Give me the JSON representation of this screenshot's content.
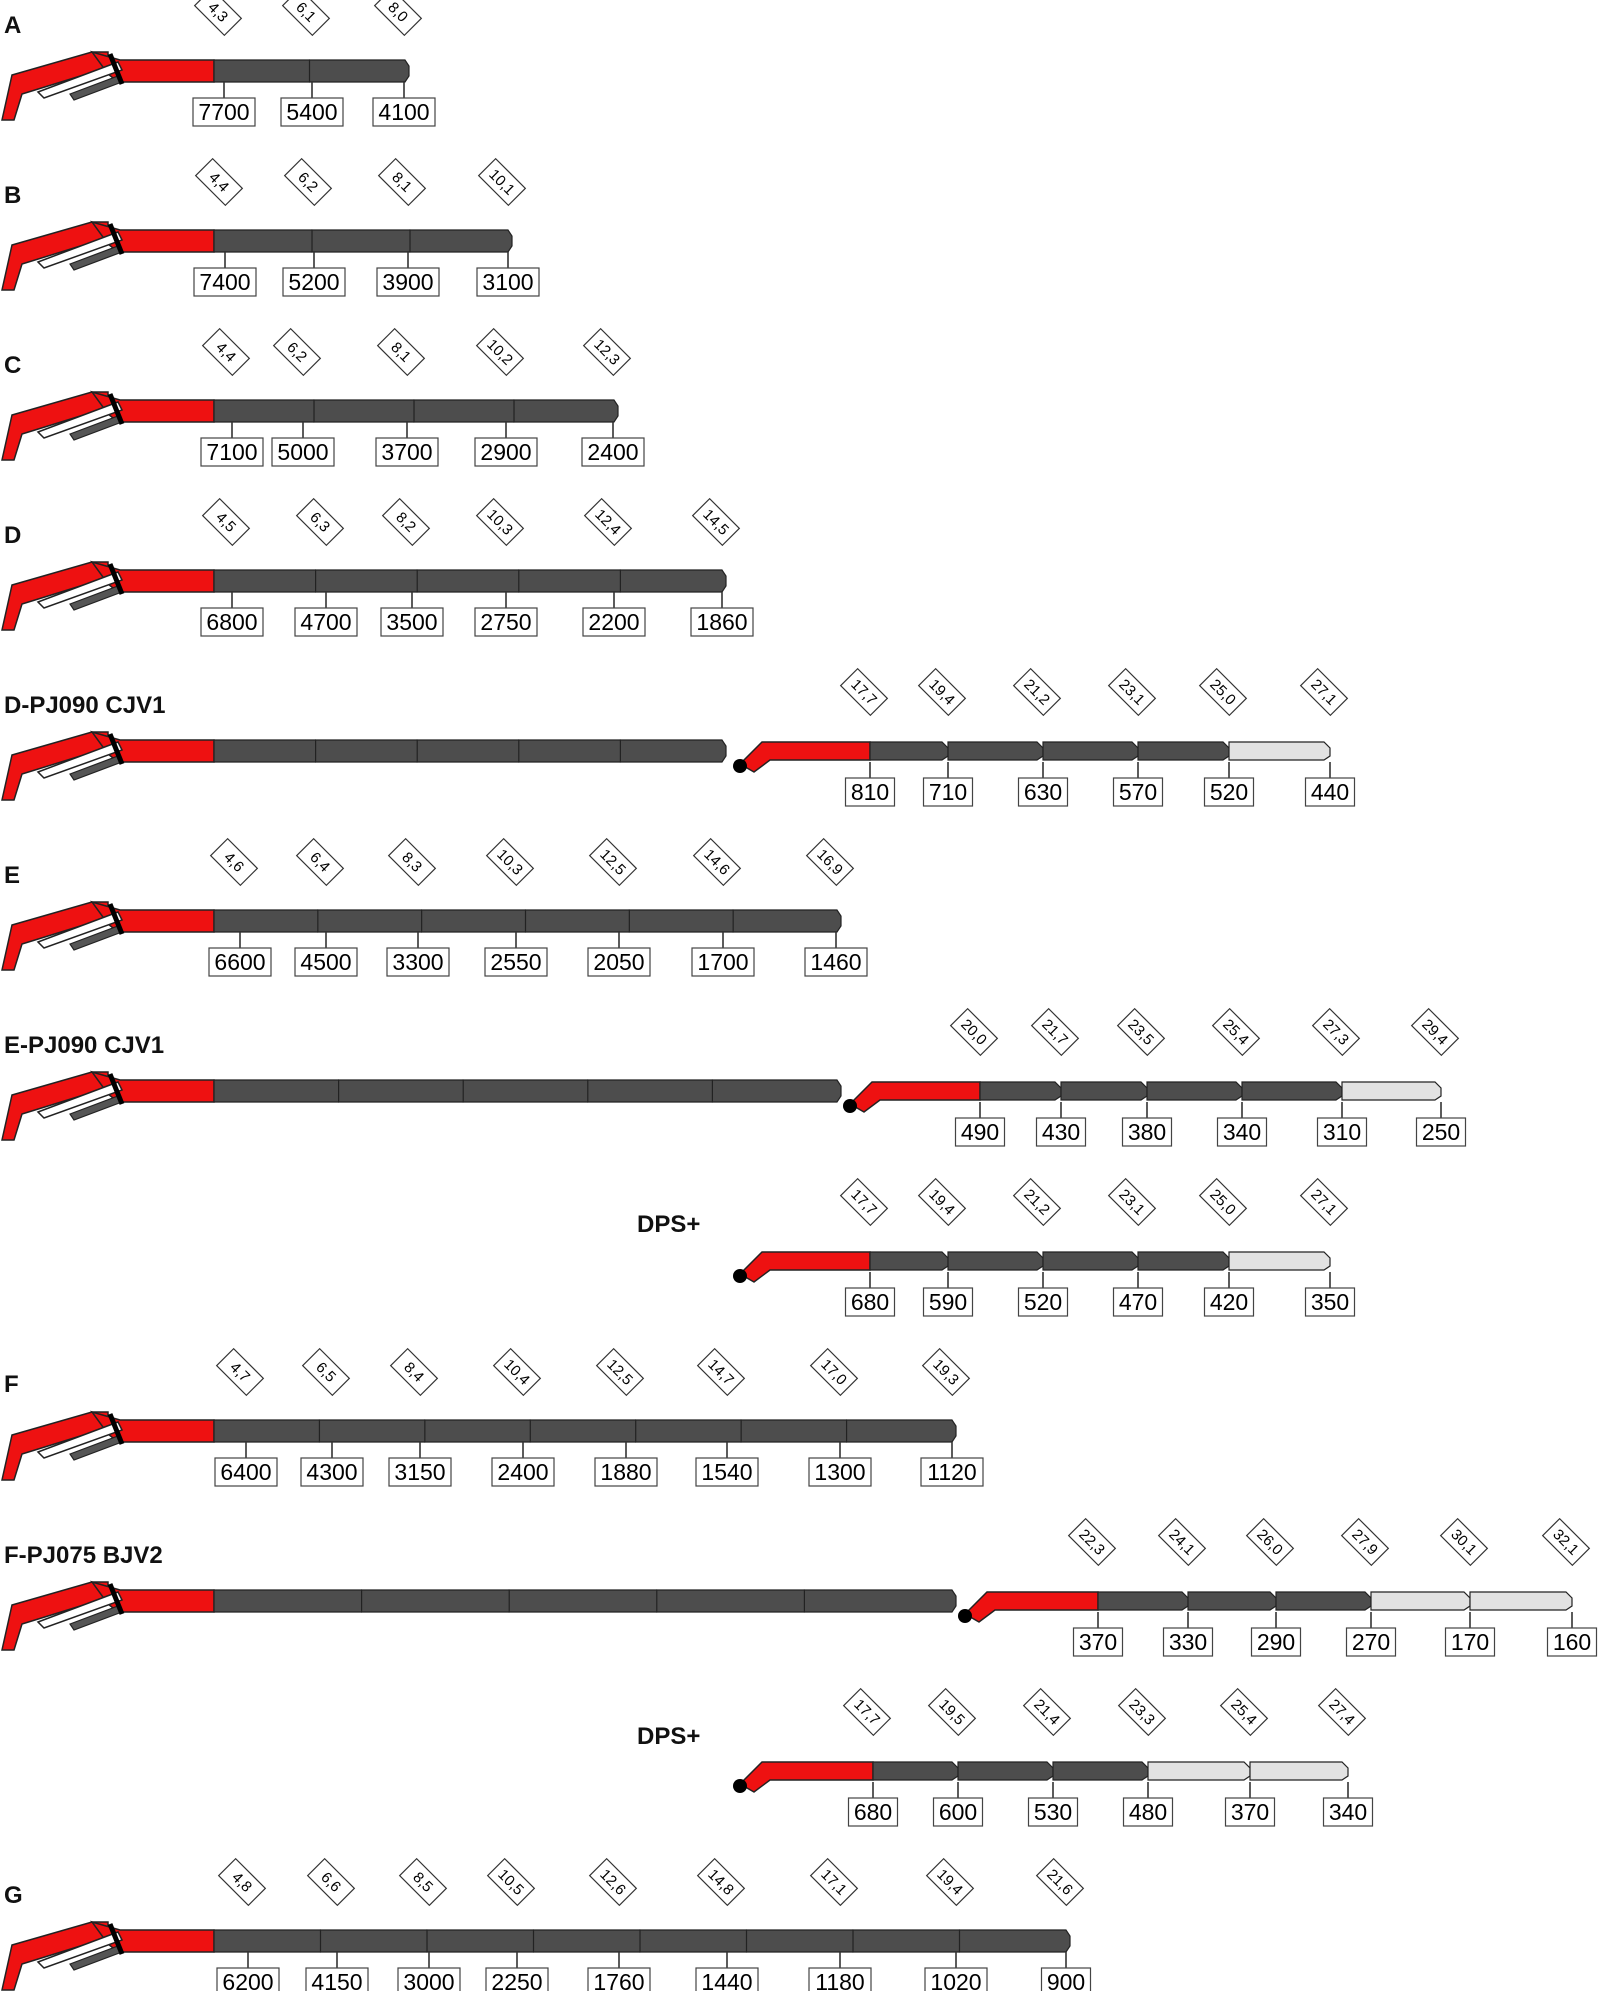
{
  "colors": {
    "red": "#ee1111",
    "dark_grey": "#4d4d4d",
    "light_grey": "#e2e2e2",
    "outline": "#222222"
  },
  "rows": [
    {
      "label": "A",
      "main": {
        "reach": [
          "4,3",
          "6,1",
          "8,0"
        ],
        "cap": [
          "7700",
          "5400",
          "4100"
        ]
      }
    },
    {
      "label": "B",
      "main": {
        "reach": [
          "4,4",
          "6,2",
          "8,1",
          "10,1"
        ],
        "cap": [
          "7400",
          "5200",
          "3900",
          "3100"
        ]
      }
    },
    {
      "label": "C",
      "main": {
        "reach": [
          "4,4",
          "6,2",
          "8,1",
          "10,2",
          "12,3"
        ],
        "cap": [
          "7100",
          "5000",
          "3700",
          "2900",
          "2400"
        ]
      }
    },
    {
      "label": "D",
      "main": {
        "reach": [
          "4,5",
          "6,3",
          "8,2",
          "10,3",
          "12,4",
          "14,5"
        ],
        "cap": [
          "6800",
          "4700",
          "3500",
          "2750",
          "2200",
          "1860"
        ]
      }
    },
    {
      "label": "D-PJ090 CJV1",
      "jib": {
        "reach": [
          "17,7",
          "19,4",
          "21,2",
          "23,1",
          "25,0",
          "27,1"
        ],
        "cap": [
          "810",
          "710",
          "630",
          "570",
          "520",
          "440"
        ],
        "kinds": [
          "dark",
          "dark",
          "dark",
          "dark",
          "light"
        ]
      }
    },
    {
      "label": "E",
      "main": {
        "reach": [
          "4,6",
          "6,4",
          "8,3",
          "10,3",
          "12,5",
          "14,6",
          "16,9"
        ],
        "cap": [
          "6600",
          "4500",
          "3300",
          "2550",
          "2050",
          "1700",
          "1460"
        ]
      }
    },
    {
      "label": "E-PJ090 CJV1",
      "jib": {
        "reach": [
          "20,0",
          "21,7",
          "23,5",
          "25,4",
          "27,3",
          "29,4"
        ],
        "cap": [
          "490",
          "430",
          "380",
          "340",
          "310",
          "250"
        ],
        "kinds": [
          "dark",
          "dark",
          "dark",
          "dark",
          "light"
        ]
      }
    },
    {
      "label": "DPS+",
      "jib": {
        "reach": [
          "17,7",
          "19,4",
          "21,2",
          "23,1",
          "25,0",
          "27,1"
        ],
        "cap": [
          "680",
          "590",
          "520",
          "470",
          "420",
          "350"
        ],
        "kinds": [
          "dark",
          "dark",
          "dark",
          "dark",
          "light"
        ]
      }
    },
    {
      "label": "F",
      "main": {
        "reach": [
          "4,7",
          "6,5",
          "8,4",
          "10,4",
          "12,5",
          "14,7",
          "17,0",
          "19,3"
        ],
        "cap": [
          "6400",
          "4300",
          "3150",
          "2400",
          "1880",
          "1540",
          "1300",
          "1120"
        ]
      }
    },
    {
      "label": "F-PJ075 BJV2",
      "jib": {
        "reach": [
          "22,3",
          "24,1",
          "26,0",
          "27,9",
          "30,1",
          "32,1"
        ],
        "cap": [
          "370",
          "330",
          "290",
          "270",
          "170",
          "160"
        ],
        "kinds": [
          "dark",
          "dark",
          "dark",
          "light",
          "light"
        ]
      }
    },
    {
      "label": "DPS+",
      "jib": {
        "reach": [
          "17,7",
          "19,5",
          "21,4",
          "23,3",
          "25,4",
          "27,4"
        ],
        "cap": [
          "680",
          "600",
          "530",
          "480",
          "370",
          "340"
        ],
        "kinds": [
          "dark",
          "dark",
          "dark",
          "light",
          "light"
        ]
      }
    },
    {
      "label": "G",
      "main": {
        "reach": [
          "4,8",
          "6,6",
          "8,5",
          "10,5",
          "12,6",
          "14,8",
          "17,1",
          "19,4",
          "21,6"
        ],
        "cap": [
          "6200",
          "4150",
          "3000",
          "2250",
          "1760",
          "1440",
          "1180",
          "1020",
          "900"
        ]
      }
    }
  ]
}
